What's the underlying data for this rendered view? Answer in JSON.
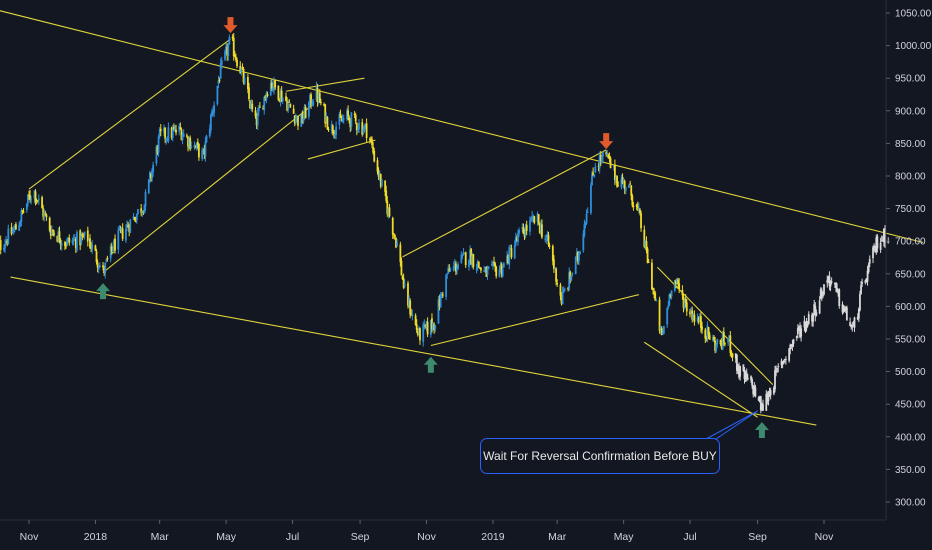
{
  "chart_data": {
    "type": "candlestick",
    "y_axis": {
      "ticks": [
        "1050.00",
        "1000.00",
        "950.00",
        "900.00",
        "850.00",
        "800.00",
        "750.00",
        "700.00",
        "650.00",
        "600.00",
        "550.00",
        "500.00",
        "450.00",
        "400.00",
        "350.00",
        "300.00"
      ],
      "ylim": [
        278,
        1062
      ],
      "position": "right"
    },
    "x_axis": {
      "ticks": [
        "Nov",
        "2018",
        "Mar",
        "May",
        "Jul",
        "Sep",
        "Nov",
        "2019",
        "Mar",
        "May",
        "Jul",
        "Sep",
        "Nov"
      ],
      "range": [
        "2017-10-01",
        "2019-12-31"
      ]
    },
    "price_path": [
      [
        "2017-10-01",
        685
      ],
      [
        "2017-10-20",
        720
      ],
      [
        "2017-11-05",
        780
      ],
      [
        "2017-11-20",
        720
      ],
      [
        "2017-12-05",
        698
      ],
      [
        "2017-12-25",
        705
      ],
      [
        "2018-01-08",
        652
      ],
      [
        "2018-01-20",
        700
      ],
      [
        "2018-02-15",
        758
      ],
      [
        "2018-03-01",
        860
      ],
      [
        "2018-03-20",
        870
      ],
      [
        "2018-04-10",
        830
      ],
      [
        "2018-04-25",
        955
      ],
      [
        "2018-05-05",
        1008
      ],
      [
        "2018-05-15",
        960
      ],
      [
        "2018-05-28",
        880
      ],
      [
        "2018-06-10",
        945
      ],
      [
        "2018-06-25",
        915
      ],
      [
        "2018-07-08",
        880
      ],
      [
        "2018-07-22",
        930
      ],
      [
        "2018-08-05",
        872
      ],
      [
        "2018-08-20",
        890
      ],
      [
        "2018-09-08",
        870
      ],
      [
        "2018-09-20",
        790
      ],
      [
        "2018-10-05",
        695
      ],
      [
        "2018-10-12",
        622
      ],
      [
        "2018-10-25",
        555
      ],
      [
        "2018-11-08",
        575
      ],
      [
        "2018-11-20",
        650
      ],
      [
        "2018-12-10",
        680
      ],
      [
        "2018-12-25",
        650
      ],
      [
        "2019-01-10",
        660
      ],
      [
        "2019-01-25",
        708
      ],
      [
        "2019-02-10",
        735
      ],
      [
        "2019-02-22",
        690
      ],
      [
        "2019-03-05",
        610
      ],
      [
        "2019-03-20",
        675
      ],
      [
        "2019-04-05",
        820
      ],
      [
        "2019-04-15",
        830
      ],
      [
        "2019-04-25",
        795
      ],
      [
        "2019-05-05",
        785
      ],
      [
        "2019-05-15",
        740
      ],
      [
        "2019-05-25",
        655
      ],
      [
        "2019-06-05",
        550
      ],
      [
        "2019-06-15",
        645
      ],
      [
        "2019-06-28",
        600
      ],
      [
        "2019-07-10",
        575
      ],
      [
        "2019-07-25",
        540
      ],
      [
        "2019-08-05",
        550
      ],
      [
        "2019-08-15",
        500
      ],
      [
        "2019-08-28",
        475
      ],
      [
        "2019-09-05",
        443
      ],
      [
        "2019-09-12",
        470
      ],
      [
        "2019-09-22",
        510
      ],
      [
        "2019-10-08",
        560
      ],
      [
        "2019-10-22",
        590
      ],
      [
        "2019-11-05",
        645
      ],
      [
        "2019-11-15",
        610
      ],
      [
        "2019-11-28",
        562
      ],
      [
        "2019-12-05",
        620
      ],
      [
        "2019-12-20",
        700
      ],
      [
        "2019-12-30",
        712
      ]
    ],
    "series_colors": {
      "up": "#2f8fdb",
      "down": "#f0dc28",
      "recent": "#d9d9d9"
    },
    "trendlines": [
      {
        "from": [
          "2017-09-15",
          1062
        ],
        "to": [
          "2020-01-31",
          698
        ]
      },
      {
        "from": [
          "2017-10-15",
          645
        ],
        "to": [
          "2019-10-25",
          418
        ]
      },
      {
        "from": [
          "2017-11-01",
          780
        ],
        "to": [
          "2018-05-05",
          1010
        ]
      },
      {
        "from": [
          "2018-01-08",
          652
        ],
        "to": [
          "2018-07-20",
          910
        ]
      },
      {
        "from": [
          "2018-06-25",
          930
        ],
        "to": [
          "2018-09-05",
          950
        ]
      },
      {
        "from": [
          "2018-07-15",
          826
        ],
        "to": [
          "2018-09-15",
          855
        ]
      },
      {
        "from": [
          "2018-10-10",
          676
        ],
        "to": [
          "2019-04-15",
          840
        ]
      },
      {
        "from": [
          "2018-11-05",
          540
        ],
        "to": [
          "2019-05-15",
          618
        ]
      },
      {
        "from": [
          "2019-06-01",
          660
        ],
        "to": [
          "2019-09-15",
          480
        ]
      },
      {
        "from": [
          "2019-05-20",
          545
        ],
        "to": [
          "2019-09-01",
          430
        ]
      }
    ],
    "markers": [
      {
        "date": "2018-05-05",
        "price": 1010,
        "type": "arrow-down",
        "color": "#e05a2b"
      },
      {
        "date": "2019-04-15",
        "price": 832,
        "type": "arrow-down",
        "color": "#e05a2b"
      },
      {
        "date": "2018-01-08",
        "price": 648,
        "type": "arrow-up",
        "color": "#3e8a6e"
      },
      {
        "date": "2018-11-05",
        "price": 535,
        "type": "arrow-up",
        "color": "#3e8a6e"
      },
      {
        "date": "2019-09-05",
        "price": 435,
        "type": "arrow-up",
        "color": "#3e8a6e"
      }
    ],
    "trendline_color": "#e0d33a",
    "annotations": [
      {
        "text": "Wait For Reversal Confirmation Before BUY",
        "anchor": [
          "2019-09-05",
          443
        ],
        "border_color": "#2962ff"
      }
    ]
  }
}
